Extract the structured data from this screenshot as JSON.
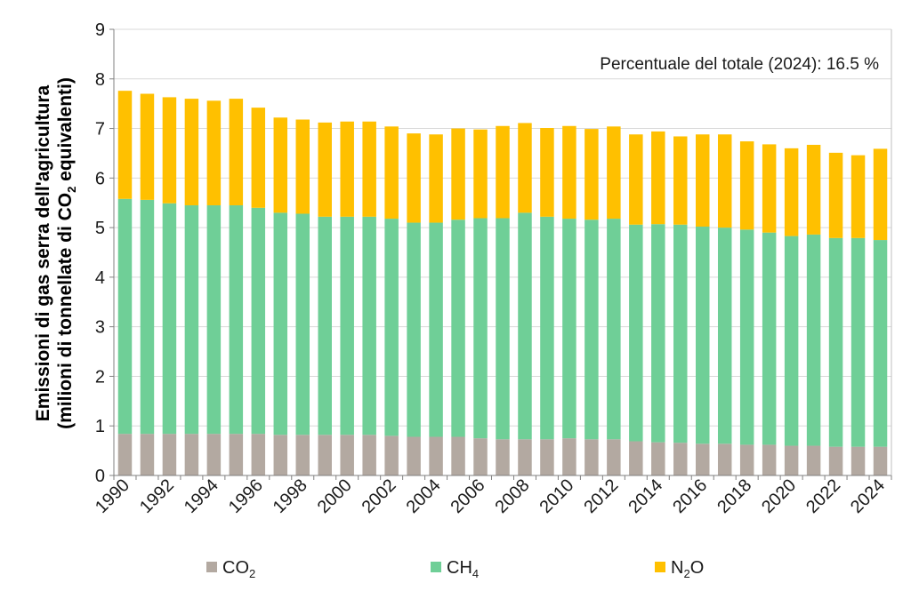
{
  "chart_data": {
    "type": "bar",
    "stacked": true,
    "ylabel_line1": "Emissioni  di gas serra dell'agricultura",
    "ylabel_line2_pre": "(milioni di tonnellate di CO",
    "ylabel_line2_sub": "2",
    "ylabel_line2_post": " equivalenti)",
    "annotation": "Percentuale  del totale (2024):  16.5 %",
    "ylim": [
      0,
      9
    ],
    "yticks": [
      "0",
      "1",
      "2",
      "3",
      "4",
      "5",
      "6",
      "7",
      "8",
      "9"
    ],
    "grid": "horizontal",
    "legend_position": "bottom",
    "categories": [
      "1990",
      "1991",
      "1992",
      "1993",
      "1994",
      "1995",
      "1996",
      "1997",
      "1998",
      "1999",
      "2000",
      "2001",
      "2002",
      "2003",
      "2004",
      "2005",
      "2006",
      "2007",
      "2008",
      "2009",
      "2010",
      "2011",
      "2012",
      "2013",
      "2014",
      "2015",
      "2016",
      "2017",
      "2018",
      "2019",
      "2020",
      "2021",
      "2022",
      "2023",
      "2024"
    ],
    "xtick_labels": [
      "1990",
      "",
      "1992",
      "",
      "1994",
      "",
      "1996",
      "",
      "1998",
      "",
      "2000",
      "",
      "2002",
      "",
      "2004",
      "",
      "2006",
      "",
      "2008",
      "",
      "2010",
      "",
      "2012",
      "",
      "2014",
      "",
      "2016",
      "",
      "2018",
      "",
      "2020",
      "",
      "2022",
      "",
      "2024"
    ],
    "series": [
      {
        "name": "CO",
        "sub": "2",
        "color": "#b3a9a1",
        "values": [
          0.84,
          0.84,
          0.84,
          0.84,
          0.84,
          0.84,
          0.84,
          0.82,
          0.82,
          0.82,
          0.82,
          0.82,
          0.8,
          0.78,
          0.78,
          0.78,
          0.75,
          0.73,
          0.73,
          0.73,
          0.75,
          0.73,
          0.73,
          0.69,
          0.67,
          0.66,
          0.64,
          0.64,
          0.62,
          0.62,
          0.6,
          0.6,
          0.58,
          0.58,
          0.58
        ]
      },
      {
        "name": "CH",
        "sub": "4",
        "color": "#6fcf97",
        "values": [
          4.74,
          4.72,
          4.65,
          4.61,
          4.61,
          4.61,
          4.56,
          4.48,
          4.46,
          4.4,
          4.4,
          4.4,
          4.38,
          4.32,
          4.32,
          4.38,
          4.44,
          4.46,
          4.57,
          4.49,
          4.43,
          4.43,
          4.45,
          4.37,
          4.4,
          4.4,
          4.38,
          4.36,
          4.34,
          4.28,
          4.23,
          4.26,
          4.21,
          4.21,
          4.17
        ]
      },
      {
        "name": "N",
        "sub": "2",
        "name_post": "O",
        "color": "#ffc000",
        "values": [
          2.18,
          2.14,
          2.14,
          2.15,
          2.11,
          2.15,
          2.02,
          1.92,
          1.9,
          1.9,
          1.92,
          1.92,
          1.86,
          1.8,
          1.78,
          1.84,
          1.79,
          1.86,
          1.81,
          1.79,
          1.87,
          1.83,
          1.86,
          1.82,
          1.87,
          1.78,
          1.86,
          1.88,
          1.78,
          1.78,
          1.77,
          1.81,
          1.72,
          1.67,
          1.84
        ]
      }
    ]
  }
}
